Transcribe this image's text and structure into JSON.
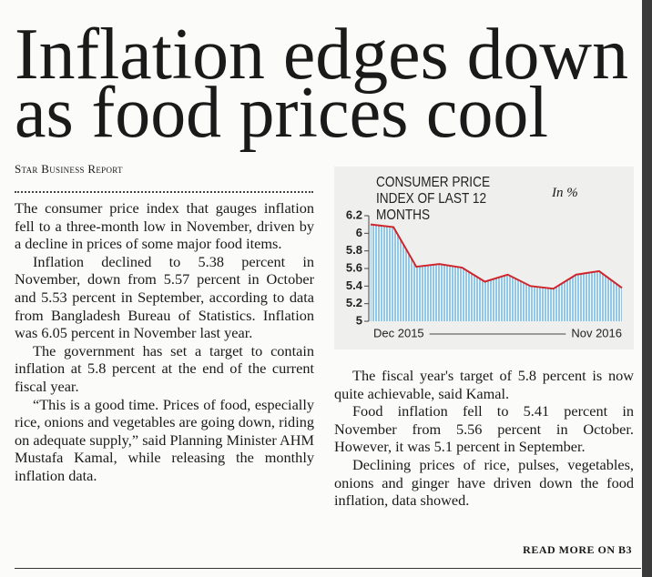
{
  "headline": [
    "Inflation edges down",
    "as food prices cool"
  ],
  "byline": "Star Business Report",
  "left_paragraphs": [
    "The consumer price index that gauges inflation fell to a three-month low in November, driven by a decline in prices of some major food items.",
    "Inflation declined to 5.38 percent in November, down from 5.57 percent in October and 5.53 percent in September, according to data from Bangladesh Bureau of Statistics. Inflation was 6.05 percent in November last year.",
    "The government has set a target to contain inflation at 5.8 percent at the end of the current fiscal year.",
    "“This is a good time. Prices of food, especially rice, onions and vegetables are going down, riding on adequate supply,” said Planning Minister AHM Mustafa Kamal, while releasing the monthly inflation data."
  ],
  "right_paragraphs": [
    "The fiscal year's target of 5.8 percent is now quite achievable, said Kamal.",
    "Food inflation fell to 5.41 percent in November from 5.56 percent in October. However, it was 5.1 percent in September.",
    "Declining prices of rice, pulses, vegetables, onions and ginger have driven down the food inflation, data showed."
  ],
  "read_more": "READ MORE ON B3",
  "chart_data": {
    "type": "area",
    "title": "CONSUMER PRICE INDEX OF LAST 12 MONTHS",
    "unit_note": "In %",
    "categories": [
      "Dec 2015",
      null,
      null,
      null,
      null,
      null,
      null,
      null,
      null,
      null,
      null,
      "Nov 2016"
    ],
    "values": [
      6.1,
      6.07,
      5.62,
      5.65,
      5.61,
      5.45,
      5.53,
      5.4,
      5.37,
      5.53,
      5.57,
      5.38
    ],
    "color": "#d0252a",
    "fill_color": "#8ec9ea",
    "ylim": [
      5,
      6.2
    ],
    "yticks": [
      5,
      5.2,
      5.4,
      5.6,
      5.8,
      6,
      6.2
    ]
  }
}
